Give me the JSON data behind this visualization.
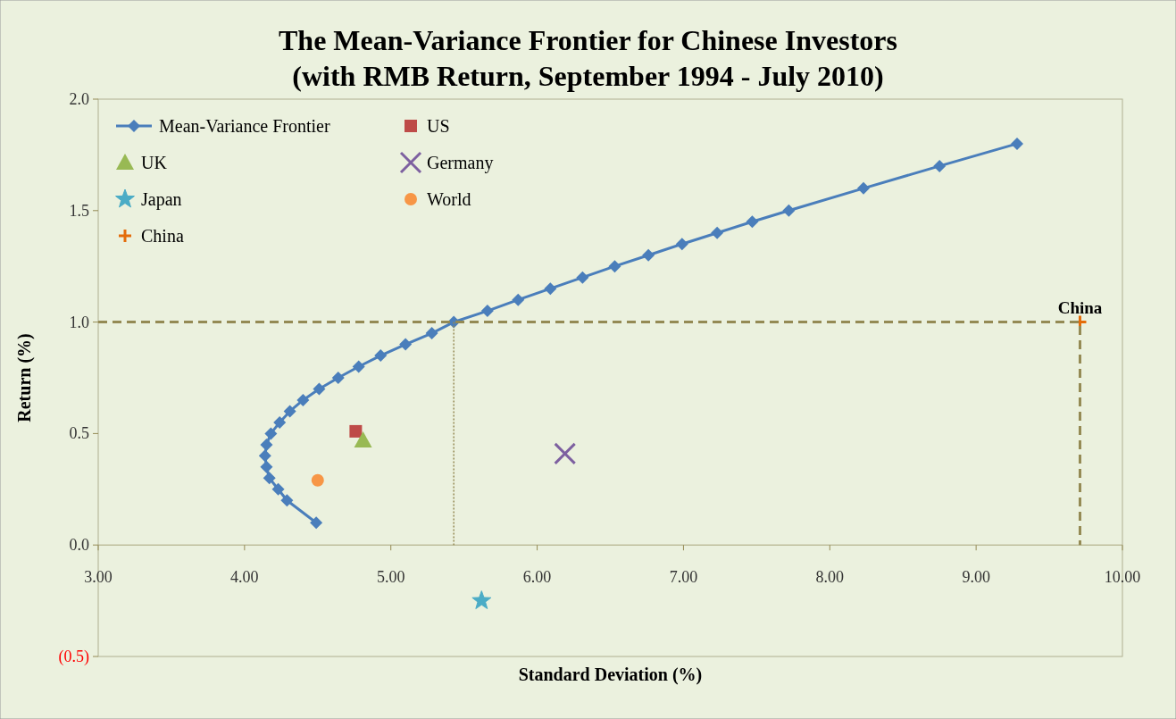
{
  "chart_data": {
    "type": "line",
    "title": "The Mean-Variance Frontier for Chinese Investors",
    "subtitle": "(with RMB Return, September 1994 - July 2010)",
    "xlabel": "Standard Deviation (%)",
    "ylabel": "Return (%)",
    "xlim": [
      3,
      10
    ],
    "xticks": [
      {
        "value": 3,
        "label": "3.00"
      },
      {
        "value": 4,
        "label": "4.00"
      },
      {
        "value": 5,
        "label": "5.00"
      },
      {
        "value": 6,
        "label": "6.00"
      },
      {
        "value": 7,
        "label": "7.00"
      },
      {
        "value": 8,
        "label": "8.00"
      },
      {
        "value": 9,
        "label": "9.00"
      },
      {
        "value": 10,
        "label": "10.00"
      }
    ],
    "ylim": [
      -0.5,
      2
    ],
    "yticks": [
      {
        "value": -0.5,
        "label": "(0.5)"
      },
      {
        "value": 0,
        "label": "0.0"
      },
      {
        "value": 0.5,
        "label": "0.5"
      },
      {
        "value": 1,
        "label": "1.0"
      },
      {
        "value": 1.5,
        "label": "1.5"
      },
      {
        "value": 2,
        "label": "2.0"
      }
    ],
    "grid": false,
    "legend": "top left",
    "series": [
      {
        "name": "Mean-Variance Frontier",
        "marker": "diamond",
        "color": "#4a7ebb",
        "x": [
          4.49,
          4.29,
          4.23,
          4.17,
          4.15,
          4.14,
          4.15,
          4.18,
          4.24,
          4.31,
          4.4,
          4.51,
          4.64,
          4.78,
          4.93,
          5.1,
          5.28,
          5.43,
          5.66,
          5.87,
          6.09,
          6.31,
          6.53,
          6.76,
          6.99,
          7.23,
          7.47,
          7.72,
          8.23,
          8.75,
          9.28
        ],
        "values": [
          0.1,
          0.2,
          0.25,
          0.3,
          0.35,
          0.4,
          0.45,
          0.5,
          0.55,
          0.6,
          0.65,
          0.7,
          0.75,
          0.8,
          0.85,
          0.9,
          0.95,
          1.0,
          1.05,
          1.1,
          1.15,
          1.2,
          1.25,
          1.3,
          1.35,
          1.4,
          1.45,
          1.5,
          1.6,
          1.7,
          1.8
        ]
      },
      {
        "name": "US",
        "type": "scatter",
        "marker": "square",
        "color": "#be4b48",
        "x": [
          4.76
        ],
        "values": [
          0.51
        ]
      },
      {
        "name": "UK",
        "type": "scatter",
        "marker": "triangle",
        "color": "#98b954",
        "x": [
          4.81
        ],
        "values": [
          0.47
        ]
      },
      {
        "name": "Germany",
        "type": "scatter",
        "marker": "cross",
        "color": "#7d60a0",
        "x": [
          6.19
        ],
        "values": [
          0.41
        ]
      },
      {
        "name": "Japan",
        "type": "scatter",
        "marker": "star",
        "color": "#4bacc6",
        "x": [
          5.62
        ],
        "values": [
          -0.25
        ]
      },
      {
        "name": "World",
        "type": "scatter",
        "marker": "circle",
        "color": "#f79646",
        "x": [
          4.5
        ],
        "values": [
          0.29
        ]
      },
      {
        "name": "China",
        "type": "scatter",
        "marker": "plus",
        "color": "#e46c0a",
        "x": [
          9.71
        ],
        "values": [
          1.0
        ]
      },
      {
        "type": "line",
        "marker": "none",
        "line_style": "dashed",
        "color": "#948a54",
        "x": [
          3,
          9.71,
          9.71
        ],
        "values": [
          1.0,
          1.0,
          0
        ]
      },
      {
        "type": "line",
        "marker": "none",
        "line_style": "dotted",
        "color": "#948a54",
        "x": [
          5.43,
          5.43
        ],
        "values": [
          1.0,
          0
        ]
      }
    ],
    "annotations": [
      {
        "text": "China",
        "x": 9.71,
        "y": 1.0
      }
    ]
  }
}
